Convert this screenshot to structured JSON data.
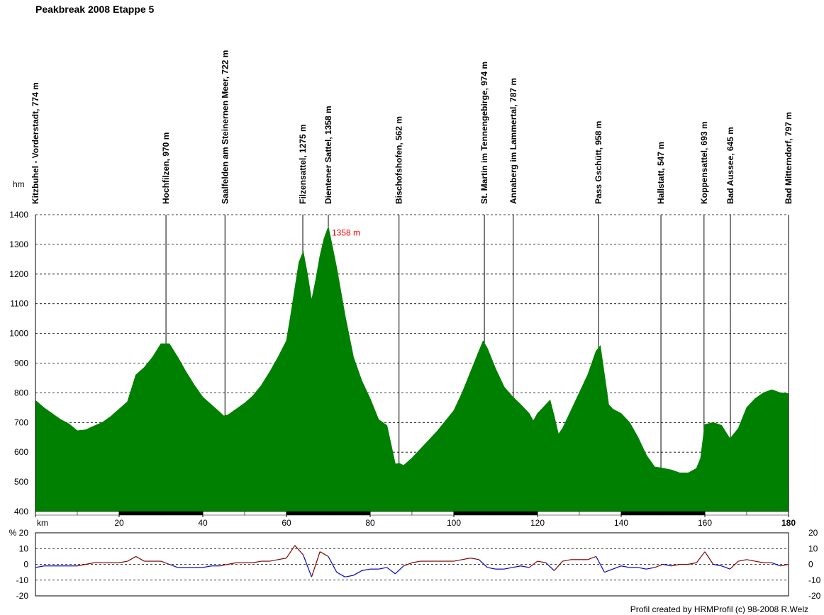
{
  "chart_data": [
    {
      "type": "area",
      "title": "Peakbreak 2008 Etappe 5",
      "y_label": "hm",
      "color": "#008000",
      "xlim": [
        0,
        180
      ],
      "ylim": [
        400,
        1400
      ],
      "yticks": [
        400,
        500,
        600,
        700,
        800,
        900,
        1000,
        1100,
        1200,
        1300,
        1400
      ],
      "xticks": [
        {
          "value": 0,
          "label": "km"
        },
        20,
        40,
        60,
        80,
        100,
        120,
        140,
        160,
        180
      ],
      "x": [
        0,
        2,
        4,
        6,
        8,
        10,
        12,
        14,
        16,
        18,
        20,
        22,
        24,
        26,
        28,
        30,
        32,
        34,
        36,
        38,
        40,
        42,
        44,
        45,
        46,
        48,
        50,
        52,
        54,
        56,
        58,
        60,
        61,
        62,
        63,
        64,
        65,
        66,
        67,
        68,
        69,
        70,
        71,
        72,
        74,
        76,
        78,
        80,
        82,
        84,
        86,
        87,
        88,
        90,
        92,
        94,
        96,
        98,
        100,
        102,
        104,
        106,
        107,
        108,
        110,
        112,
        114,
        116,
        118,
        119,
        120,
        122,
        123,
        124,
        125,
        126,
        128,
        130,
        132,
        134,
        135,
        136,
        137,
        138,
        140,
        142,
        144,
        146,
        148,
        149.5,
        152,
        154,
        156,
        158,
        159,
        160,
        162,
        164,
        166,
        168,
        170,
        172,
        174,
        176,
        178,
        180
      ],
      "values": [
        774,
        750,
        730,
        710,
        695,
        672,
        675,
        688,
        700,
        720,
        745,
        770,
        860,
        885,
        920,
        965,
        965,
        920,
        870,
        825,
        785,
        760,
        735,
        722,
        725,
        745,
        765,
        790,
        825,
        870,
        920,
        975,
        1060,
        1150,
        1240,
        1275,
        1200,
        1110,
        1180,
        1260,
        1320,
        1358,
        1290,
        1220,
        1060,
        920,
        840,
        780,
        710,
        690,
        560,
        562,
        555,
        580,
        610,
        640,
        670,
        705,
        740,
        800,
        870,
        940,
        974,
        950,
        880,
        820,
        787,
        760,
        730,
        705,
        730,
        760,
        775,
        720,
        660,
        680,
        740,
        800,
        860,
        940,
        958,
        860,
        760,
        745,
        730,
        700,
        650,
        590,
        550,
        547,
        540,
        530,
        530,
        545,
        580,
        693,
        700,
        690,
        645,
        680,
        750,
        780,
        800,
        810,
        800,
        797
      ],
      "waypoints": [
        {
          "x": 0,
          "label": "Kitzbuhel - Vorderstadt, 774 m"
        },
        {
          "x": 31.2,
          "label": "Hochfilzen, 970 m"
        },
        {
          "x": 45.3,
          "label": "Saalfelden am Steinernen Meer, 722 m"
        },
        {
          "x": 63.9,
          "label": "Filzensattel, 1275 m"
        },
        {
          "x": 70,
          "label": "Dientener Sattel, 1358 m"
        },
        {
          "x": 86.9,
          "label": "Bischofshofen, 562 m"
        },
        {
          "x": 107.3,
          "label": "St. Martin im Tennengebirge, 974 m"
        },
        {
          "x": 114.2,
          "label": "Annaberg im Lammertal, 787 m"
        },
        {
          "x": 134.6,
          "label": "Pass Gschütt, 958 m"
        },
        {
          "x": 149.5,
          "label": "Hallstatt, 547 m"
        },
        {
          "x": 159.8,
          "label": "Koppensattel, 693 m"
        },
        {
          "x": 166.1,
          "label": "Bad Aussee, 645 m"
        },
        {
          "x": 180,
          "label": "Bad Mitterndorf, 797 m"
        }
      ],
      "annotation": {
        "x": 70,
        "y": 1358,
        "text": "1358 m",
        "color": "#ff0000"
      }
    },
    {
      "type": "gradient",
      "xlim": [
        0,
        180
      ],
      "ylim": [
        -20,
        20
      ],
      "yticks": [
        {
          "value": 20,
          "label": "% 20"
        },
        10,
        0,
        -10,
        -20
      ],
      "y2ticks": [
        20,
        10,
        0,
        -10,
        -20
      ],
      "positive_color": "#800000",
      "negative_color": "#0000c0",
      "x": [
        0,
        2,
        4,
        6,
        8,
        10,
        12,
        14,
        16,
        18,
        20,
        22,
        24,
        26,
        28,
        30,
        32,
        34,
        36,
        38,
        40,
        42,
        44,
        46,
        48,
        50,
        52,
        54,
        56,
        58,
        60,
        62,
        64,
        66,
        68,
        70,
        72,
        74,
        76,
        78,
        80,
        82,
        84,
        86,
        88,
        90,
        92,
        94,
        96,
        98,
        100,
        102,
        104,
        106,
        108,
        110,
        112,
        114,
        116,
        118,
        120,
        122,
        124,
        126,
        128,
        130,
        132,
        134,
        136,
        138,
        140,
        142,
        144,
        146,
        148,
        150,
        152,
        154,
        156,
        158,
        160,
        162,
        164,
        166,
        168,
        170,
        172,
        174,
        176,
        178,
        180
      ],
      "values": [
        -2,
        -1,
        -1,
        -1,
        -1,
        -1,
        0,
        1,
        1,
        1,
        1,
        2,
        5,
        2,
        2,
        2,
        0,
        -2,
        -2,
        -2,
        -2,
        -1,
        -1,
        0,
        1,
        1,
        1,
        2,
        2,
        3,
        4,
        12,
        6,
        -8,
        8,
        5,
        -5,
        -8,
        -7,
        -4,
        -3,
        -3,
        -2,
        -6,
        -1,
        1,
        2,
        2,
        2,
        2,
        2,
        3,
        4,
        3,
        -2,
        -3,
        -3,
        -2,
        -1,
        -2,
        2,
        1,
        -4,
        2,
        3,
        3,
        3,
        5,
        -5,
        -3,
        -1,
        -2,
        -2,
        -3,
        -2,
        0,
        -1,
        0,
        0,
        1,
        8,
        0,
        -1,
        -3,
        2,
        3,
        2,
        1,
        1,
        -1,
        0
      ]
    }
  ],
  "footer": "Profil created by HRMProfil (c) 98-2008 R.Welz"
}
